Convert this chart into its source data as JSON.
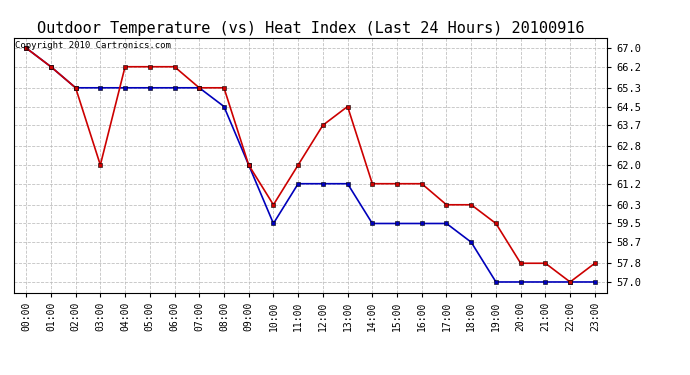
{
  "title": "Outdoor Temperature (vs) Heat Index (Last 24 Hours) 20100916",
  "copyright": "Copyright 2010 Cartronics.com",
  "x_labels": [
    "00:00",
    "01:00",
    "02:00",
    "03:00",
    "04:00",
    "05:00",
    "06:00",
    "07:00",
    "08:00",
    "09:00",
    "10:00",
    "11:00",
    "12:00",
    "13:00",
    "14:00",
    "15:00",
    "16:00",
    "17:00",
    "18:00",
    "19:00",
    "20:00",
    "21:00",
    "22:00",
    "23:00"
  ],
  "blue_data": [
    67.0,
    66.2,
    65.3,
    65.3,
    65.3,
    65.3,
    65.3,
    65.3,
    64.5,
    62.0,
    59.5,
    61.2,
    61.2,
    61.2,
    59.5,
    59.5,
    59.5,
    59.5,
    58.7,
    57.0,
    57.0,
    57.0,
    57.0,
    57.0
  ],
  "red_data": [
    67.0,
    66.2,
    65.3,
    62.0,
    66.2,
    66.2,
    66.2,
    65.3,
    65.3,
    62.0,
    60.3,
    62.0,
    63.7,
    64.5,
    61.2,
    61.2,
    61.2,
    60.3,
    60.3,
    59.5,
    57.8,
    57.8,
    57.0,
    57.8
  ],
  "ylim_min": 56.55,
  "ylim_max": 67.45,
  "yticks": [
    57.0,
    57.8,
    58.7,
    59.5,
    60.3,
    61.2,
    62.0,
    62.8,
    63.7,
    64.5,
    65.3,
    66.2,
    67.0
  ],
  "blue_color": "#0000bb",
  "red_color": "#cc0000",
  "bg_color": "#ffffff",
  "grid_color": "#bbbbbb",
  "title_fontsize": 11,
  "copyright_fontsize": 6.5,
  "tick_fontsize": 7,
  "ytick_fontsize": 7.5
}
